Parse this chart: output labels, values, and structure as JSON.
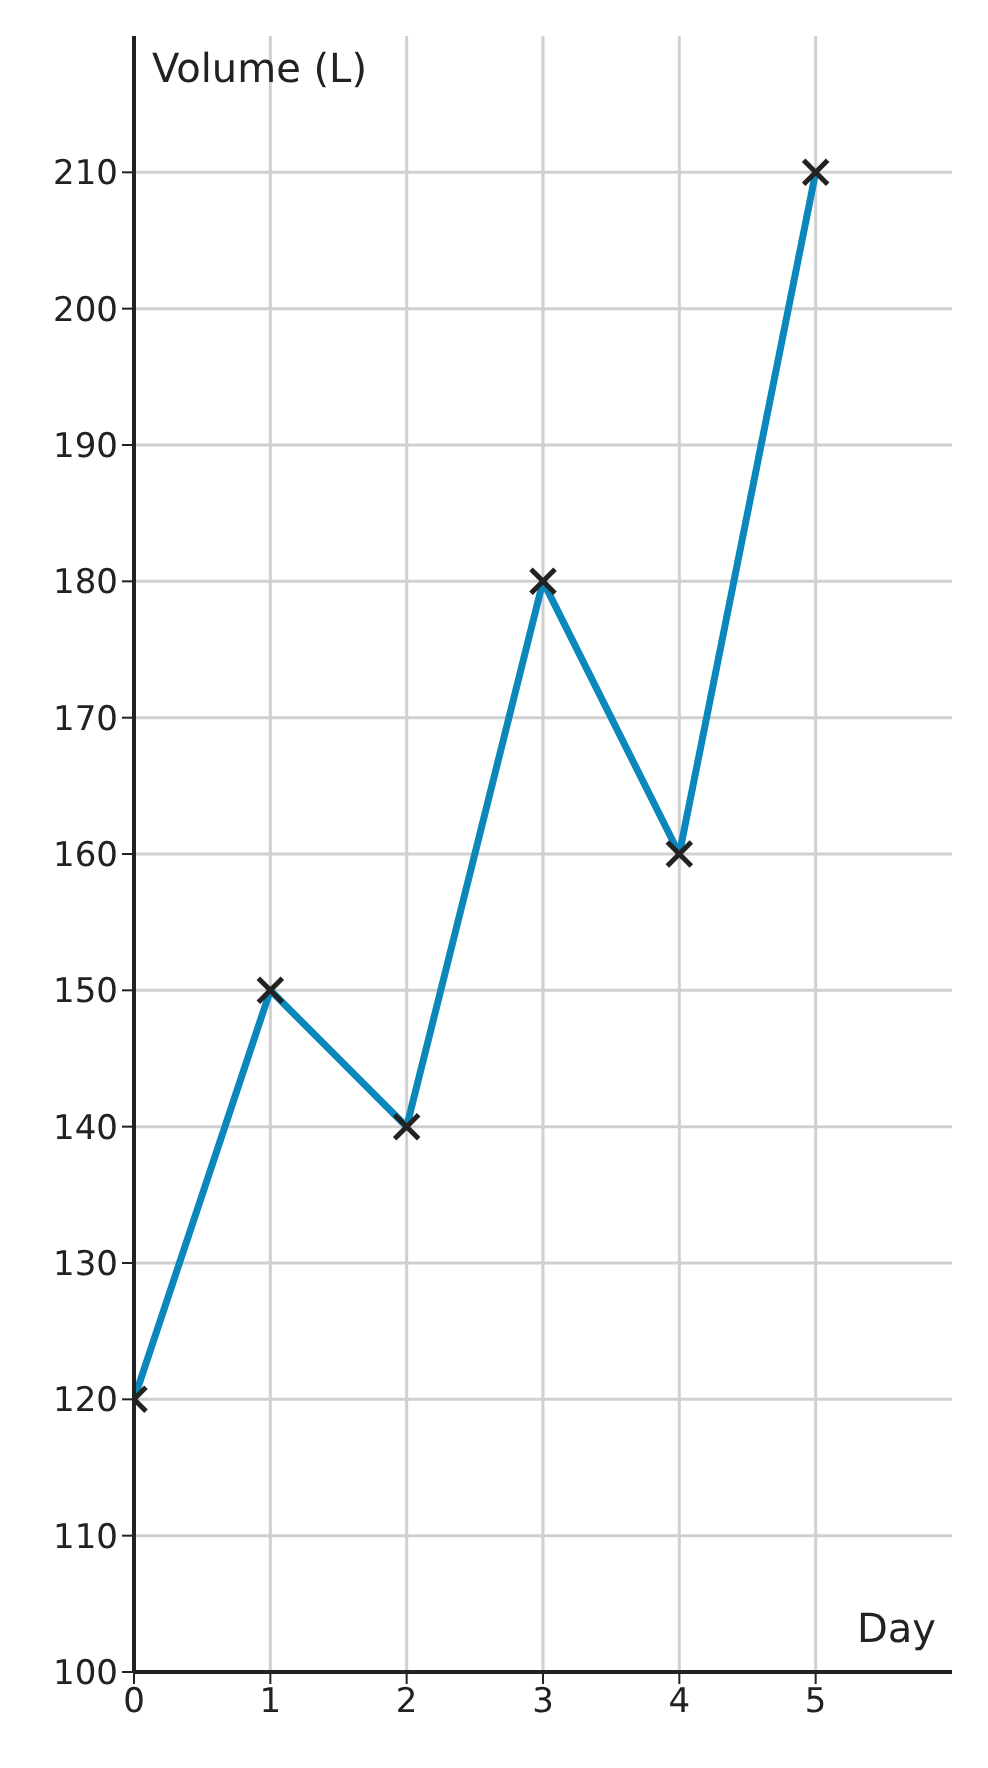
{
  "chart_data": {
    "type": "line",
    "xlabel": "Day",
    "ylabel": "Volume (L)",
    "x": [
      0,
      1,
      2,
      3,
      4,
      5
    ],
    "series": [
      {
        "color": "#0a87bb",
        "values": [
          120,
          150,
          140,
          180,
          160,
          210
        ]
      }
    ],
    "xlim": [
      0,
      6
    ],
    "xticks": [
      0,
      1,
      2,
      3,
      4,
      5
    ],
    "ylim": [
      100,
      220
    ],
    "yticks": [
      100,
      110,
      120,
      130,
      140,
      150,
      160,
      170,
      180,
      190,
      200,
      210
    ],
    "grid": true,
    "marker": "cross",
    "line_style": "solid"
  }
}
